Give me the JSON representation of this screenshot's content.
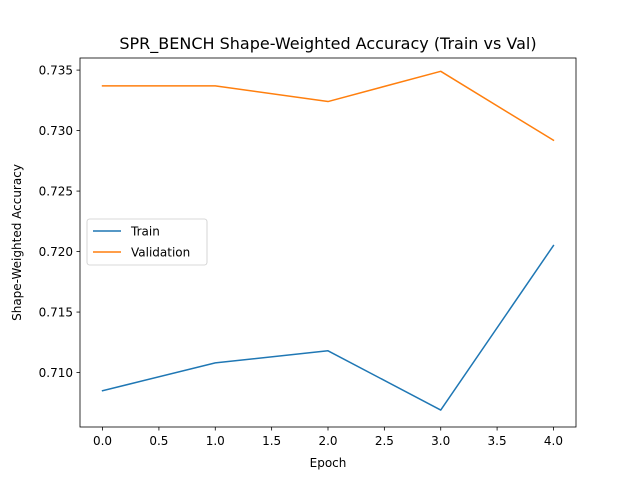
{
  "chart_data": {
    "type": "line",
    "title": "SPR_BENCH Shape-Weighted Accuracy (Train vs Val)",
    "xlabel": "Epoch",
    "ylabel": "Shape-Weighted Accuracy",
    "x": [
      0,
      1,
      2,
      3,
      4
    ],
    "xlim": [
      -0.2,
      4.2
    ],
    "ylim": [
      0.7055,
      0.736
    ],
    "xticks": [
      "0.0",
      "0.5",
      "1.0",
      "1.5",
      "2.0",
      "2.5",
      "3.0",
      "3.5",
      "4.0"
    ],
    "yticks": [
      "0.710",
      "0.715",
      "0.720",
      "0.725",
      "0.730",
      "0.735"
    ],
    "grid": false,
    "legend_position": "center-left",
    "series": [
      {
        "name": "Train",
        "color": "#1f77b4",
        "values": [
          0.7085,
          0.7108,
          0.7118,
          0.7069,
          0.7205
        ]
      },
      {
        "name": "Validation",
        "color": "#ff7f0e",
        "values": [
          0.7337,
          0.7337,
          0.7324,
          0.7349,
          0.7292
        ]
      }
    ]
  }
}
